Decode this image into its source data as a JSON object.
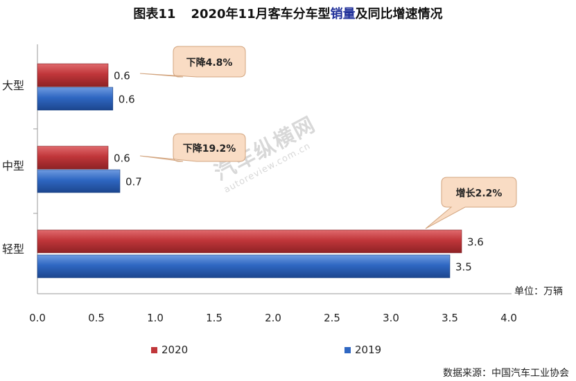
{
  "title": {
    "fig_label": "图表11",
    "prefix": "2020年11月客车分车型",
    "highlight": "销量",
    "suffix": "及同比增速情况"
  },
  "unit_label": "单位：万辆",
  "source": "数据来源：中国汽车工业协会",
  "watermark": {
    "cn": "汽车纵横网",
    "en": "autoreview.com.cn"
  },
  "colors": {
    "series_2020": "#c0363a",
    "series_2019": "#2f67c2",
    "callout_bg": "#f9dcc4",
    "callout_border": "#d2a47e"
  },
  "chart_data": {
    "type": "bar",
    "orientation": "horizontal",
    "categories": [
      "大型",
      "中型",
      "轻型"
    ],
    "series": [
      {
        "name": "2020",
        "values": [
          0.6,
          0.6,
          3.6
        ],
        "labels": [
          "0.6",
          "0.6",
          "3.6"
        ]
      },
      {
        "name": "2019",
        "values": [
          0.64,
          0.7,
          3.5
        ],
        "labels": [
          "0.6",
          "0.7",
          "3.5"
        ]
      }
    ],
    "xlim": [
      0,
      4.0
    ],
    "xticks": [
      "0.0",
      "0.5",
      "1.0",
      "1.5",
      "2.0",
      "2.5",
      "3.0",
      "3.5",
      "4.0"
    ],
    "annotations": [
      "下降4.8%",
      "下降19.2%",
      "增长2.2%"
    ],
    "legend": [
      "2020",
      "2019"
    ],
    "legend_position": "bottom"
  }
}
